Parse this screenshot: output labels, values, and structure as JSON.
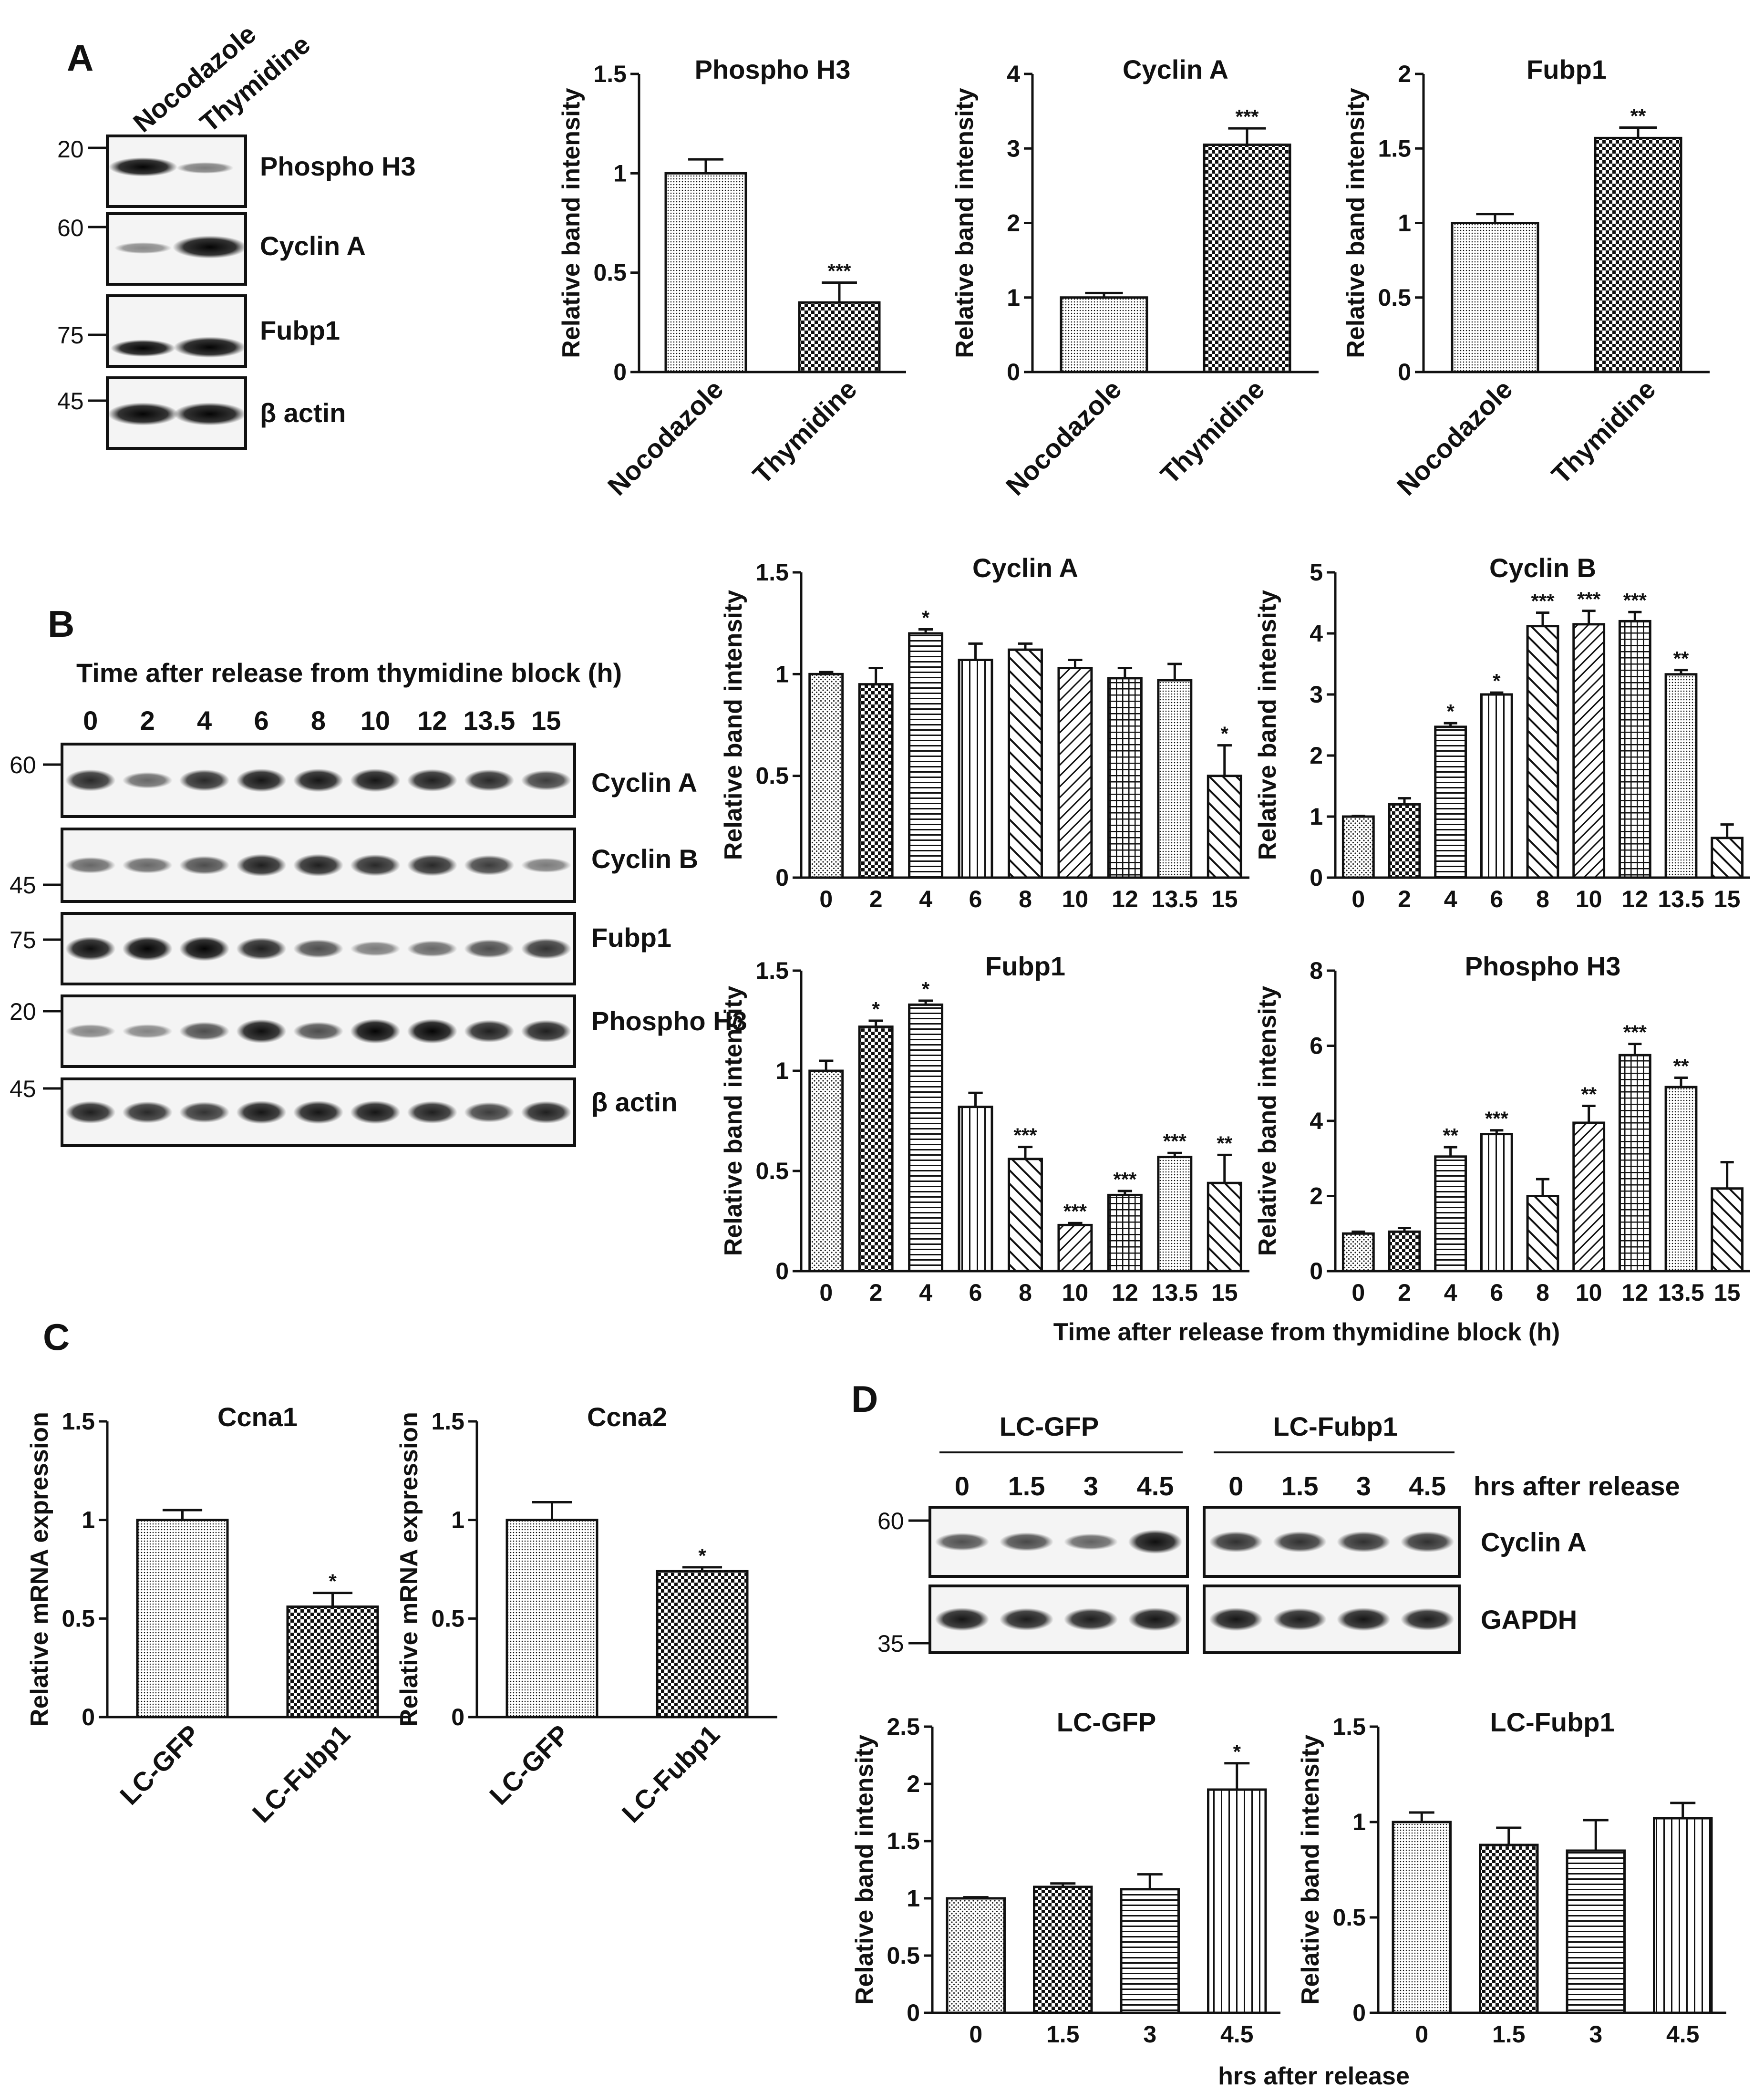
{
  "panels": {
    "A": "A",
    "B": "B",
    "C": "C",
    "D": "D"
  },
  "blotA": {
    "lanes": [
      "Nocodazole",
      "Thymidine"
    ],
    "mw": [
      "20",
      "60",
      "75",
      "45"
    ],
    "proteins": [
      "Phospho H3",
      "Cyclin A",
      "Fubp1",
      "β actin"
    ]
  },
  "blotB": {
    "title": "Time after release from thymidine block (h)",
    "lanes": [
      "0",
      "2",
      "4",
      "6",
      "8",
      "10",
      "12",
      "13.5",
      "15"
    ],
    "mw": [
      "60",
      "45",
      "75",
      "20",
      "45"
    ],
    "proteins": [
      "Cyclin A",
      "Cyclin B",
      "Fubp1",
      "Phospho H3",
      "β actin"
    ]
  },
  "blotD": {
    "groups": [
      "LC-GFP",
      "LC-Fubp1"
    ],
    "lanes": [
      "0",
      "1.5",
      "3",
      "4.5",
      "0",
      "1.5",
      "3",
      "4.5"
    ],
    "lanes_label": "hrs after release",
    "mw": [
      "60",
      "35"
    ],
    "proteins": [
      "Cyclin A",
      "GAPDH"
    ]
  },
  "sharedLabels": {
    "B_xlabel": "Time after release from thymidine block (h)",
    "D_xlabel": "hrs after release"
  },
  "chart_data": [
    {
      "id": "A1",
      "type": "bar",
      "title": "Phospho H3",
      "ylabel": "Relative band intensity",
      "categories": [
        "Nocodazole",
        "Thymidine"
      ],
      "values": [
        1.0,
        0.35
      ],
      "errors": [
        0.07,
        0.1
      ],
      "sig": [
        "",
        "***"
      ],
      "ylim": [
        0,
        1.5
      ],
      "yticks": [
        "0",
        "0.5",
        "1",
        "1.5"
      ]
    },
    {
      "id": "A2",
      "type": "bar",
      "title": "Cyclin A",
      "ylabel": "Relative band intensity",
      "categories": [
        "Nocodazole",
        "Thymidine"
      ],
      "values": [
        1.0,
        3.05
      ],
      "errors": [
        0.06,
        0.22
      ],
      "sig": [
        "",
        "***"
      ],
      "ylim": [
        0,
        4
      ],
      "yticks": [
        "0",
        "1",
        "2",
        "3",
        "4"
      ]
    },
    {
      "id": "A3",
      "type": "bar",
      "title": "Fubp1",
      "ylabel": "Relative band intensity",
      "categories": [
        "Nocodazole",
        "Thymidine"
      ],
      "values": [
        1.0,
        1.57
      ],
      "errors": [
        0.06,
        0.07
      ],
      "sig": [
        "",
        "**"
      ],
      "ylim": [
        0,
        2
      ],
      "yticks": [
        "0",
        "0.5",
        "1",
        "1.5",
        "2"
      ]
    },
    {
      "id": "B1",
      "type": "bar",
      "title": "Cyclin A",
      "ylabel": "Relative band intensity",
      "categories": [
        "0",
        "2",
        "4",
        "6",
        "8",
        "10",
        "12",
        "13.5",
        "15"
      ],
      "values": [
        1.0,
        0.95,
        1.2,
        1.07,
        1.12,
        1.03,
        0.98,
        0.97,
        0.5
      ],
      "errors": [
        0.01,
        0.08,
        0.02,
        0.08,
        0.03,
        0.04,
        0.05,
        0.08,
        0.15
      ],
      "sig": [
        "",
        "",
        "*",
        "",
        "",
        "",
        "",
        "",
        "*"
      ],
      "ylim": [
        0,
        1.5
      ],
      "yticks": [
        "0",
        "0.5",
        "1",
        "1.5"
      ]
    },
    {
      "id": "B2",
      "type": "bar",
      "title": "Cyclin B",
      "ylabel": "Relative band intensity",
      "categories": [
        "0",
        "2",
        "4",
        "6",
        "8",
        "10",
        "12",
        "13.5",
        "15"
      ],
      "values": [
        1.0,
        1.2,
        2.47,
        3.0,
        4.12,
        4.15,
        4.2,
        3.33,
        0.65
      ],
      "errors": [
        0.01,
        0.1,
        0.06,
        0.03,
        0.22,
        0.22,
        0.15,
        0.07,
        0.22
      ],
      "sig": [
        "",
        "",
        "*",
        "*",
        "***",
        "***",
        "***",
        "**",
        ""
      ],
      "ylim": [
        0,
        5
      ],
      "yticks": [
        "0",
        "1",
        "2",
        "3",
        "4",
        "5"
      ]
    },
    {
      "id": "B3",
      "type": "bar",
      "title": "Fubp1",
      "ylabel": "Relative band intensity",
      "categories": [
        "0",
        "2",
        "4",
        "6",
        "8",
        "10",
        "12",
        "13.5",
        "15"
      ],
      "values": [
        1.0,
        1.22,
        1.33,
        0.82,
        0.56,
        0.23,
        0.38,
        0.57,
        0.44
      ],
      "errors": [
        0.05,
        0.03,
        0.02,
        0.07,
        0.06,
        0.01,
        0.02,
        0.02,
        0.14
      ],
      "sig": [
        "",
        "*",
        "*",
        "",
        "***",
        "***",
        "***",
        "***",
        "**"
      ],
      "ylim": [
        0,
        1.5
      ],
      "yticks": [
        "0",
        "0.5",
        "1",
        "1.5"
      ]
    },
    {
      "id": "B4",
      "type": "bar",
      "title": "Phospho H3",
      "ylabel": "Relative band intensity",
      "categories": [
        "0",
        "2",
        "4",
        "6",
        "8",
        "10",
        "12",
        "13.5",
        "15"
      ],
      "values": [
        1.0,
        1.05,
        3.05,
        3.65,
        2.0,
        3.95,
        5.75,
        4.9,
        2.2
      ],
      "errors": [
        0.05,
        0.1,
        0.25,
        0.1,
        0.45,
        0.45,
        0.3,
        0.25,
        0.7
      ],
      "sig": [
        "",
        "",
        "**",
        "***",
        "",
        "**",
        "***",
        "**",
        ""
      ],
      "ylim": [
        0,
        8
      ],
      "yticks": [
        "0",
        "2",
        "4",
        "6",
        "8"
      ]
    },
    {
      "id": "C1",
      "type": "bar",
      "title": "Ccna1",
      "ylabel": "Relative mRNA expression",
      "categories": [
        "LC-GFP",
        "LC-Fubp1"
      ],
      "values": [
        1.0,
        0.56
      ],
      "errors": [
        0.05,
        0.07
      ],
      "sig": [
        "",
        "*"
      ],
      "ylim": [
        0,
        1.5
      ],
      "yticks": [
        "0",
        "0.5",
        "1",
        "1.5"
      ]
    },
    {
      "id": "C2",
      "type": "bar",
      "title": "Ccna2",
      "ylabel": "Relative mRNA expression",
      "categories": [
        "LC-GFP",
        "LC-Fubp1"
      ],
      "values": [
        1.0,
        0.74
      ],
      "errors": [
        0.09,
        0.02
      ],
      "sig": [
        "",
        "*"
      ],
      "ylim": [
        0,
        1.5
      ],
      "yticks": [
        "0",
        "0.5",
        "1",
        "1.5"
      ]
    },
    {
      "id": "D1",
      "type": "bar",
      "title": "LC-GFP",
      "ylabel": "Relative band intensity",
      "categories": [
        "0",
        "1.5",
        "3",
        "4.5"
      ],
      "values": [
        1.0,
        1.1,
        1.08,
        1.95
      ],
      "errors": [
        0.01,
        0.03,
        0.13,
        0.23
      ],
      "sig": [
        "",
        "",
        "",
        "*"
      ],
      "ylim": [
        0,
        2.5
      ],
      "yticks": [
        "0",
        "0.5",
        "1",
        "1.5",
        "2",
        "2.5"
      ]
    },
    {
      "id": "D2",
      "type": "bar",
      "title": "LC-Fubp1",
      "ylabel": "Relative band intensity",
      "categories": [
        "0",
        "1.5",
        "3",
        "4.5"
      ],
      "values": [
        1.0,
        0.88,
        0.85,
        1.02
      ],
      "errors": [
        0.05,
        0.09,
        0.16,
        0.08
      ],
      "sig": [
        "",
        "",
        "",
        ""
      ],
      "ylim": [
        0,
        1.5
      ],
      "yticks": [
        "0",
        "0.5",
        "1",
        "1.5"
      ]
    }
  ]
}
